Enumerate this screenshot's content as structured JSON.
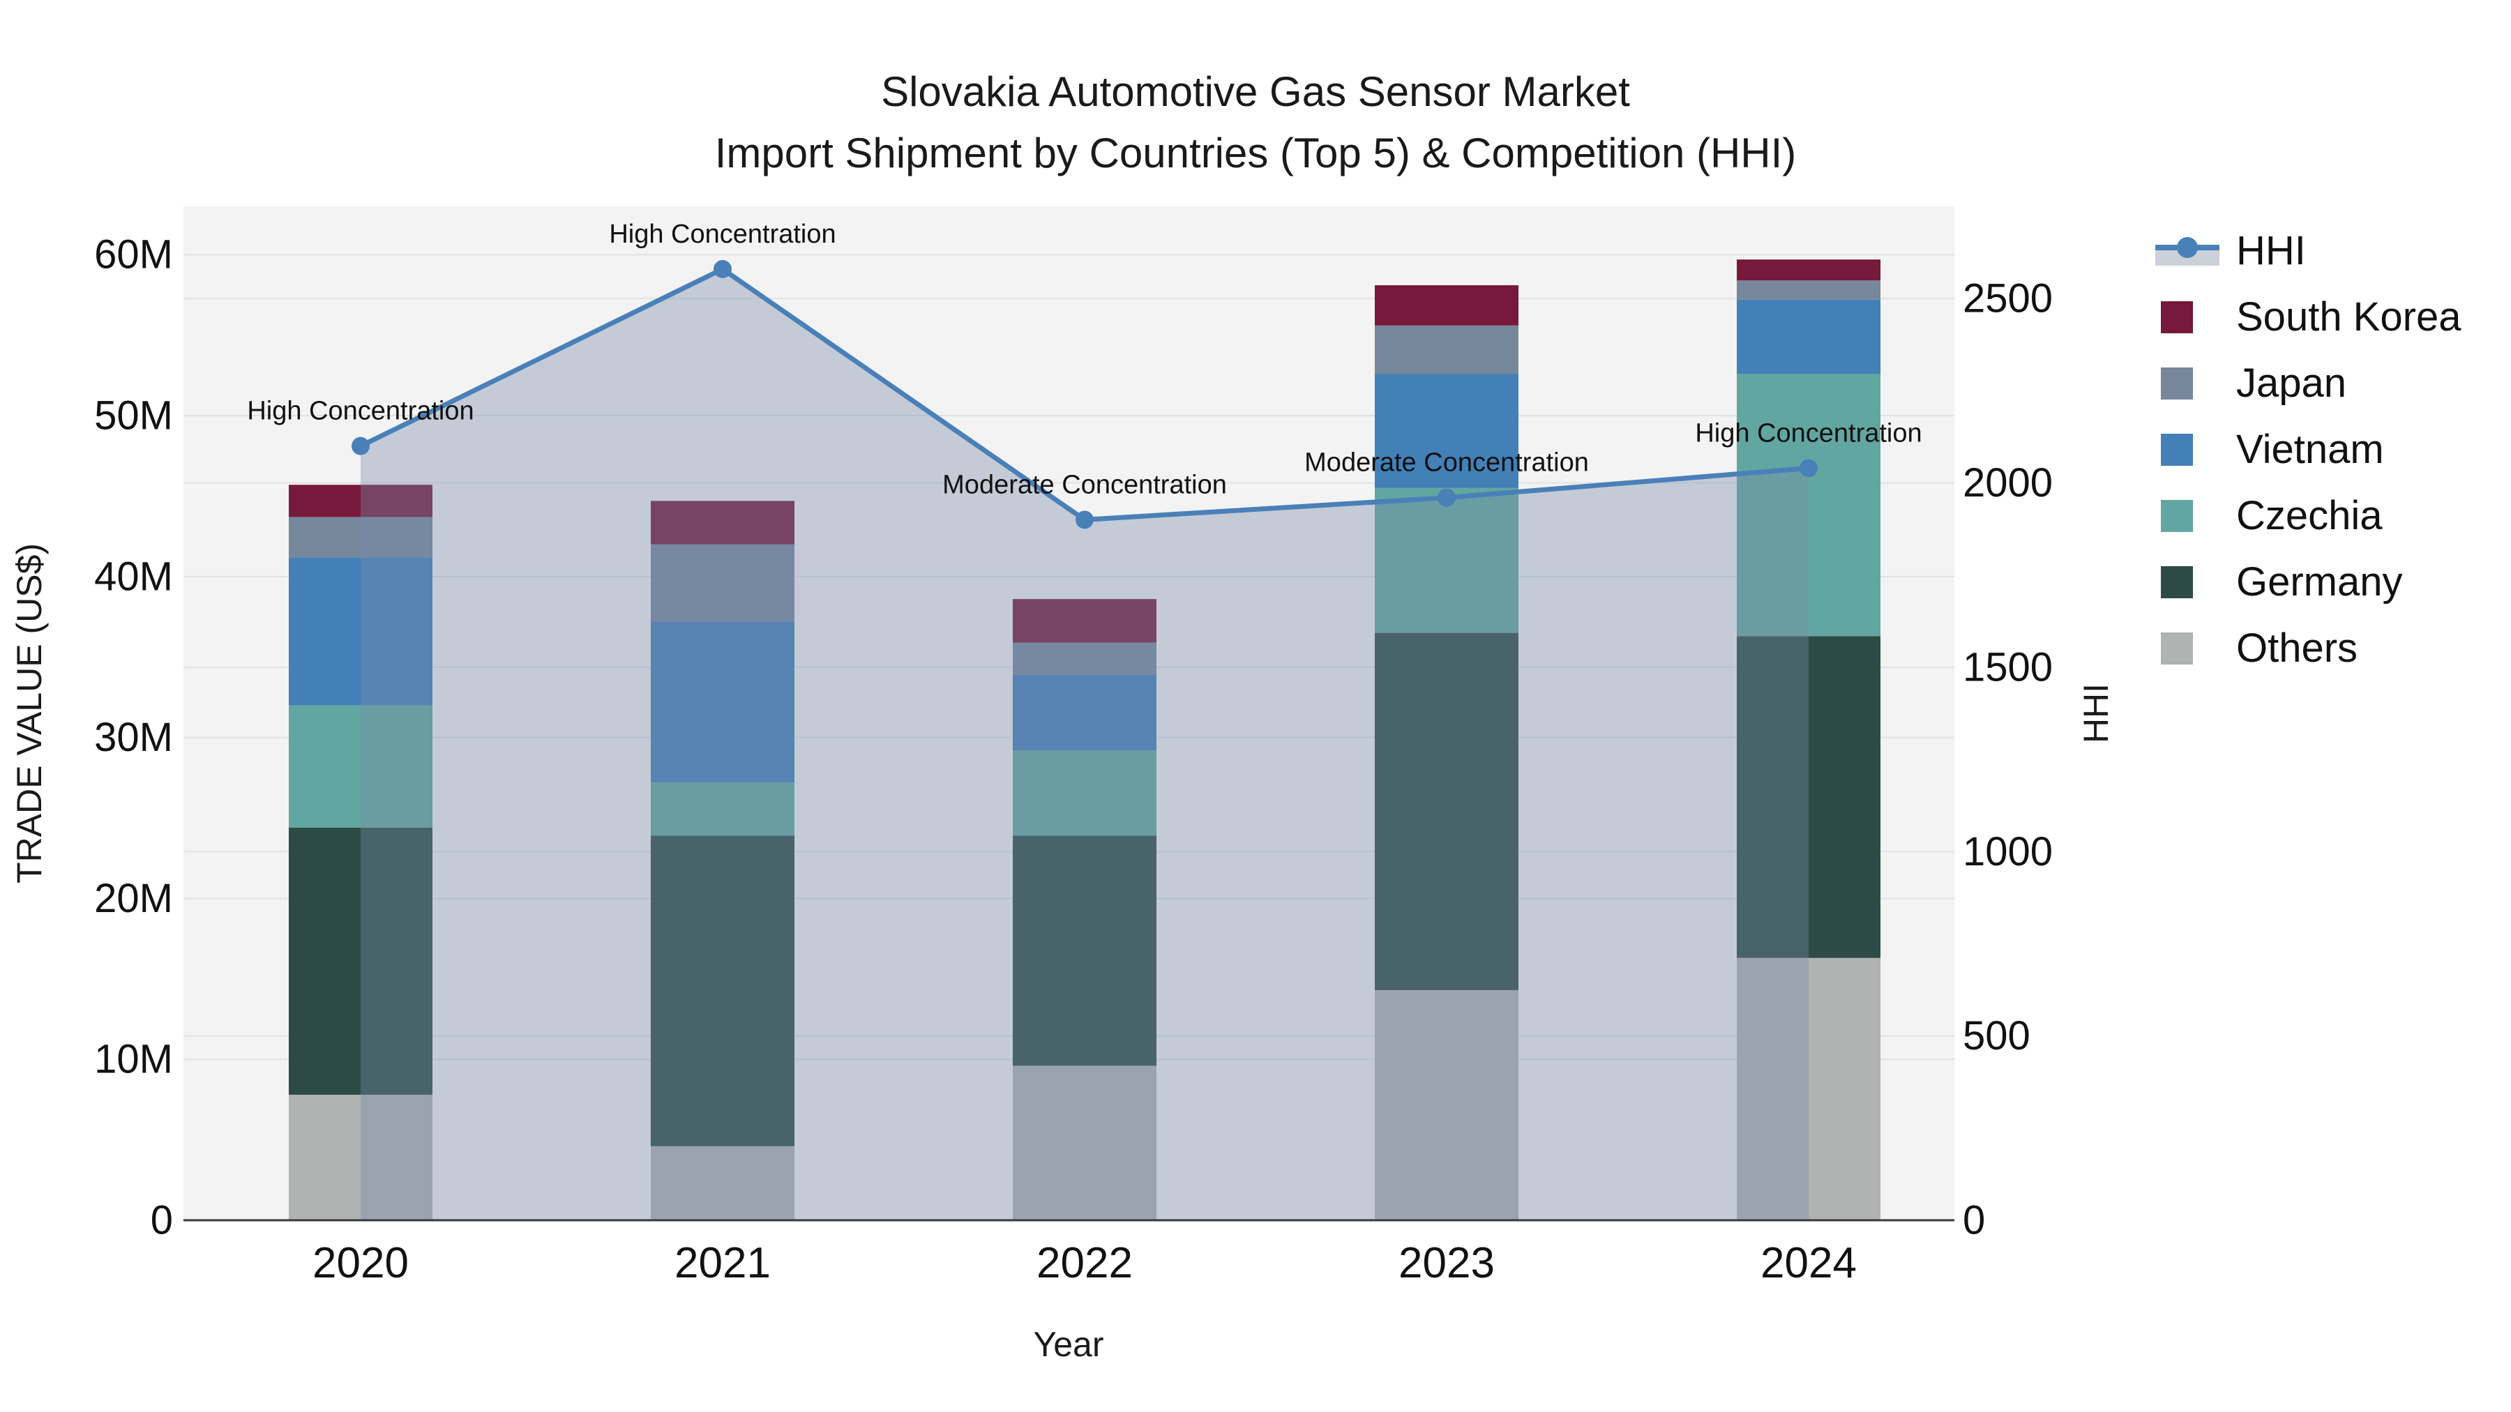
{
  "title": {
    "line1": "Slovakia Automotive Gas Sensor Market",
    "line2": "Import Shipment by Countries (Top 5) & Competition (HHI)"
  },
  "axes": {
    "x": {
      "title": "Year",
      "categories": [
        "2020",
        "2021",
        "2022",
        "2023",
        "2024"
      ]
    },
    "y_left": {
      "title": "TRADE VALUE (US$)",
      "tick_labels": [
        "0",
        "10M",
        "20M",
        "30M",
        "40M",
        "50M",
        "60M"
      ],
      "tick_values_millions": [
        0,
        10,
        20,
        30,
        40,
        50,
        60
      ],
      "range_millions": [
        0,
        63
      ]
    },
    "y_right": {
      "title": "HHI",
      "tick_labels": [
        "0",
        "500",
        "1000",
        "1500",
        "2000",
        "2500"
      ],
      "tick_values": [
        0,
        500,
        1000,
        1500,
        2000,
        2500
      ],
      "range": [
        0,
        2750
      ]
    }
  },
  "legend": {
    "items": [
      {
        "label": "HHI",
        "type": "line",
        "color": "#4a80b8",
        "band_color": "#ccd1d9"
      },
      {
        "label": "South Korea",
        "type": "square",
        "color": "#76193b"
      },
      {
        "label": "Japan",
        "type": "square",
        "color": "#77879b"
      },
      {
        "label": "Vietnam",
        "type": "square",
        "color": "#4380b8"
      },
      {
        "label": "Czechia",
        "type": "square",
        "color": "#62a6a1"
      },
      {
        "label": "Germany",
        "type": "square",
        "color": "#2d4b45"
      },
      {
        "label": "Others",
        "type": "square",
        "color": "#b0b3b1"
      }
    ]
  },
  "chart_data": {
    "type": "combo: stacked bar (left axis) + line with area fill (right axis)",
    "categories": [
      "2020",
      "2021",
      "2022",
      "2023",
      "2024"
    ],
    "bar_unit": "million US$",
    "bar_stack_order": "bottom to top",
    "bar_series": [
      {
        "name": "Others",
        "color": "#b0b3b1",
        "values": [
          7.8,
          4.6,
          9.6,
          14.3,
          16.3
        ]
      },
      {
        "name": "Germany",
        "color": "#2d4b45",
        "values": [
          16.6,
          19.3,
          14.3,
          22.2,
          20.0
        ]
      },
      {
        "name": "Czechia",
        "color": "#62a6a1",
        "values": [
          7.6,
          3.3,
          5.3,
          9.0,
          16.3
        ]
      },
      {
        "name": "Vietnam",
        "color": "#4380b8",
        "values": [
          9.2,
          10.0,
          4.7,
          7.1,
          4.6
        ]
      },
      {
        "name": "Japan",
        "color": "#77879b",
        "values": [
          2.5,
          4.8,
          2.0,
          3.0,
          1.2
        ]
      },
      {
        "name": "South Korea",
        "color": "#76193b",
        "values": [
          2.0,
          2.7,
          2.7,
          2.5,
          1.3
        ]
      }
    ],
    "bar_totals_millions": [
      45.7,
      44.7,
      38.6,
      58.1,
      59.7
    ],
    "line_series": {
      "name": "HHI",
      "axis": "right",
      "color": "#4a80b8",
      "fill": "rgba(120,140,170,0.38)",
      "values": [
        2100,
        2580,
        1900,
        1960,
        2040
      ]
    },
    "annotations": [
      {
        "text": "High Concentration",
        "category": "2020"
      },
      {
        "text": "High Concentration",
        "category": "2021"
      },
      {
        "text": "Moderate Concentration",
        "category": "2022"
      },
      {
        "text": "Moderate Concentration",
        "category": "2023"
      },
      {
        "text": "High Concentration",
        "category": "2024"
      }
    ],
    "plot_background": "#f2f3f2",
    "gridline_color": "#e0e2e5",
    "axis_line_color": "#3a3a3a",
    "legend_position": "right"
  }
}
